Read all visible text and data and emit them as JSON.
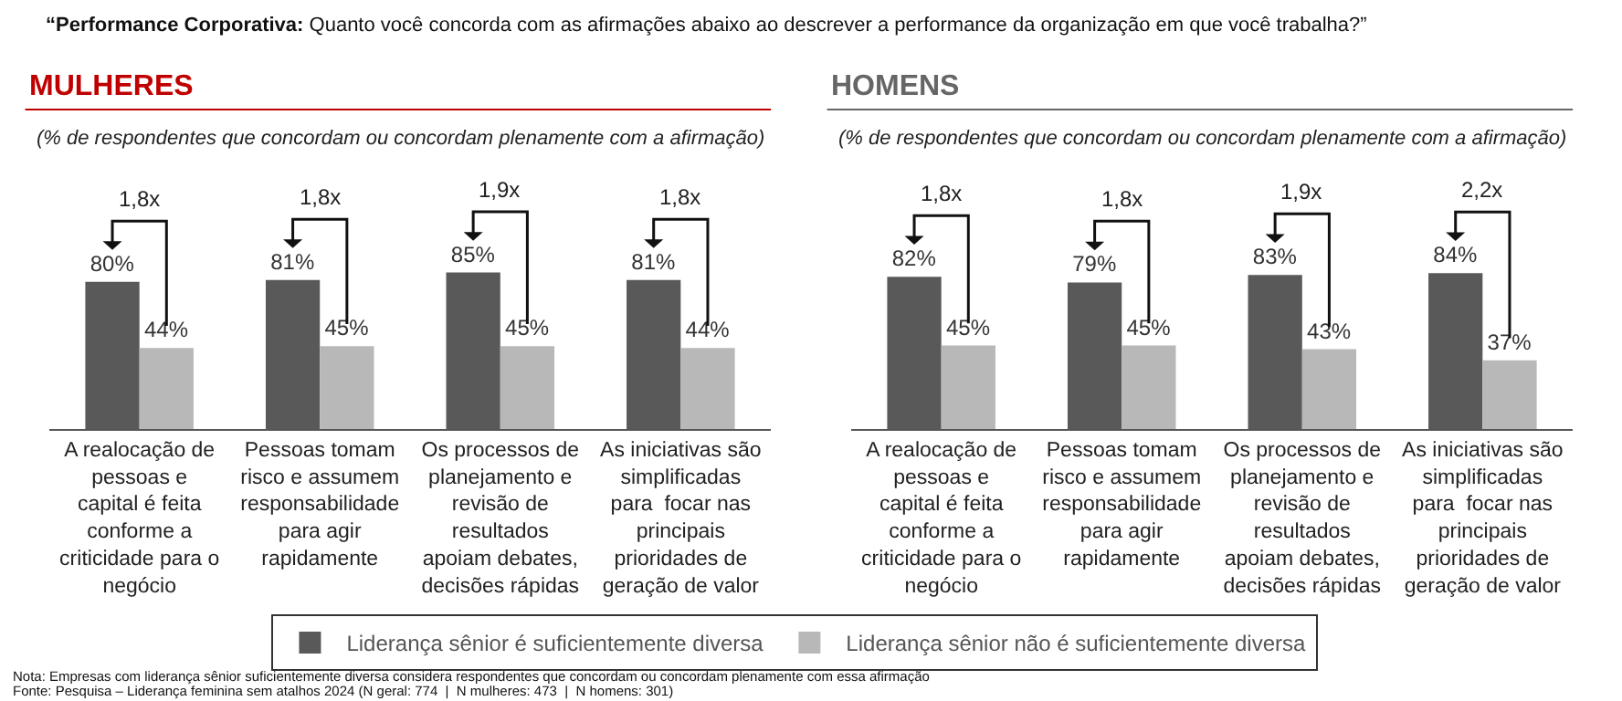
{
  "chart_data": [
    {
      "type": "bar",
      "title": "“Performance Corporativa: Quanto você concorda com as afirmações abaixo ao descrever a performance da organização em que você trabalha?”",
      "subtitle": "MULHERES",
      "xlabel": "(% de respondentes que concordam ou concordam plenamente com a afirmação)",
      "categories": [
        "A realocação de\npessoas e\ncapital é feita\nconforme a\ncriticidade para o\nnegócio",
        "Pessoas tomam\nrisco e assumem\nresponsabilidade\npara agir\nrapidamente",
        "Os processos de\nplanejamento e\nrevisão de\nresultados\napoiam debates,\ndecisões rápidas",
        "As iniciativas são\nsimplificadas\npara  focar nas\nprincipais\nprioridades de\ngeração de valor"
      ],
      "series": [
        {
          "name": "Liderança sênior é suficientemente diversa",
          "color": "#595959",
          "values": [
            80,
            81,
            85,
            81
          ],
          "value_labels": [
            "80%",
            "81%",
            "85%",
            "81%"
          ]
        },
        {
          "name": "Liderança sênior não é suficientemente diversa",
          "color": "#b8b8b8",
          "values": [
            44,
            45,
            45,
            44
          ],
          "value_labels": [
            "44%",
            "45%",
            "45%",
            "44%"
          ]
        }
      ],
      "tick_labels": "x",
      "legend": "bottom",
      "annotations": [
        "1,8x",
        "1,8x",
        "1,9x",
        "1,8x",
        "Nota: Empresas com liderança sênior suficientemente diversa considera respondentes que concordam ou concordam plenamente com essa afirmação",
        "Fonte: Pesquisa – Liderança feminina sem atalhos 2024 (N geral: 774  |  N mulheres: 473  |  N homens: 301)"
      ]
    },
    {
      "type": "bar",
      "subtitle": "HOMENS",
      "xlabel": "(% de respondentes que concordam ou concordam plenamente com a afirmação)",
      "categories": [
        "A realocação de\npessoas e\ncapital é feita\nconforme a\ncriticidade para o\nnegócio",
        "Pessoas tomam\nrisco e assumem\nresponsabilidade\npara agir\nrapidamente",
        "Os processos de\nplanejamento e\nrevisão de\nresultados\napoiam debates,\ndecisões rápidas",
        "As iniciativas são\nsimplificadas\npara  focar nas\nprincipais\nprioridades de\ngeração de valor"
      ],
      "series": [
        {
          "name": "Liderança sênior é suficientemente diversa",
          "color": "#595959",
          "values": [
            82,
            79,
            83,
            84
          ],
          "value_labels": [
            "82%",
            "79%",
            "83%",
            "84%"
          ]
        },
        {
          "name": "Liderança sênior não é suficientemente diversa",
          "color": "#b8b8b8",
          "values": [
            45,
            45,
            43,
            37
          ],
          "value_labels": [
            "45%",
            "45%",
            "43%",
            "37%"
          ]
        }
      ],
      "tick_labels": "x",
      "legend": "bottom",
      "annotations": [
        "1,8x",
        "1,8x",
        "1,9x",
        "2,2x"
      ]
    }
  ]
}
